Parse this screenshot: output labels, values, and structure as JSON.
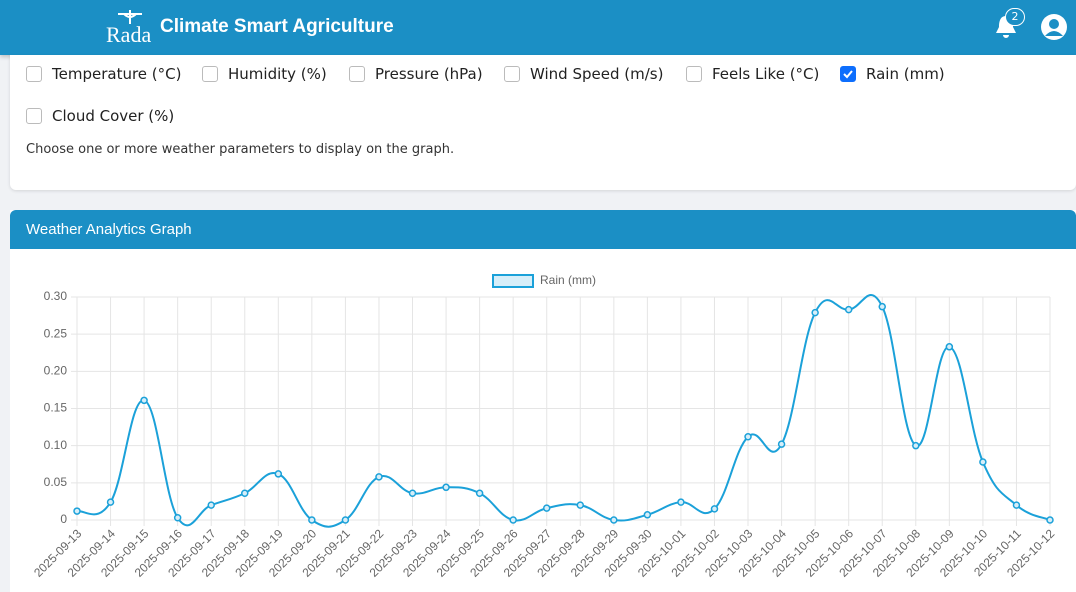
{
  "header": {
    "logo": "Rada",
    "title": "Climate Smart Agriculture",
    "notification_count": "2"
  },
  "filters": {
    "options": [
      {
        "label": "Temperature (°C)",
        "checked": false
      },
      {
        "label": "Humidity (%)",
        "checked": false
      },
      {
        "label": "Pressure (hPa)",
        "checked": false
      },
      {
        "label": "Wind Speed (m/s)",
        "checked": false
      },
      {
        "label": "Feels Like (°C)",
        "checked": false
      },
      {
        "label": "Rain (mm)",
        "checked": true
      },
      {
        "label": "Cloud Cover (%)",
        "checked": false
      }
    ],
    "hint": "Choose one or more weather parameters to display on the graph."
  },
  "panel": {
    "title": "Weather Analytics Graph"
  },
  "chart_data": {
    "type": "line",
    "categories": [
      "2025-09-13",
      "2025-09-14",
      "2025-09-15",
      "2025-09-16",
      "2025-09-17",
      "2025-09-18",
      "2025-09-19",
      "2025-09-20",
      "2025-09-21",
      "2025-09-22",
      "2025-09-23",
      "2025-09-24",
      "2025-09-25",
      "2025-09-26",
      "2025-09-27",
      "2025-09-28",
      "2025-09-29",
      "2025-09-30",
      "2025-10-01",
      "2025-10-02",
      "2025-10-03",
      "2025-10-04",
      "2025-10-05",
      "2025-10-06",
      "2025-10-07",
      "2025-10-08",
      "2025-10-09",
      "2025-10-10",
      "2025-10-11",
      "2025-10-12"
    ],
    "series": [
      {
        "name": "Rain (mm)",
        "color": "#1ba1d9",
        "values": [
          0.012,
          0.024,
          0.161,
          0.003,
          0.02,
          0.036,
          0.062,
          0,
          0,
          0.058,
          0.036,
          0.044,
          0.036,
          0,
          0.016,
          0.02,
          0,
          0.007,
          0.024,
          0.015,
          0.112,
          0.102,
          0.279,
          0.283,
          0.287,
          0.1,
          0.233,
          0.078,
          0.02,
          0
        ]
      }
    ],
    "ylim": [
      0,
      0.3
    ],
    "yticks": [
      0,
      0.05,
      {
        "value": 0.1,
        "label": "0.10"
      },
      0.15,
      {
        "value": 0.2,
        "label": "0.20"
      },
      0.25,
      {
        "value": 0.3,
        "label": "0.30"
      }
    ],
    "grid": true,
    "legend": "top"
  }
}
